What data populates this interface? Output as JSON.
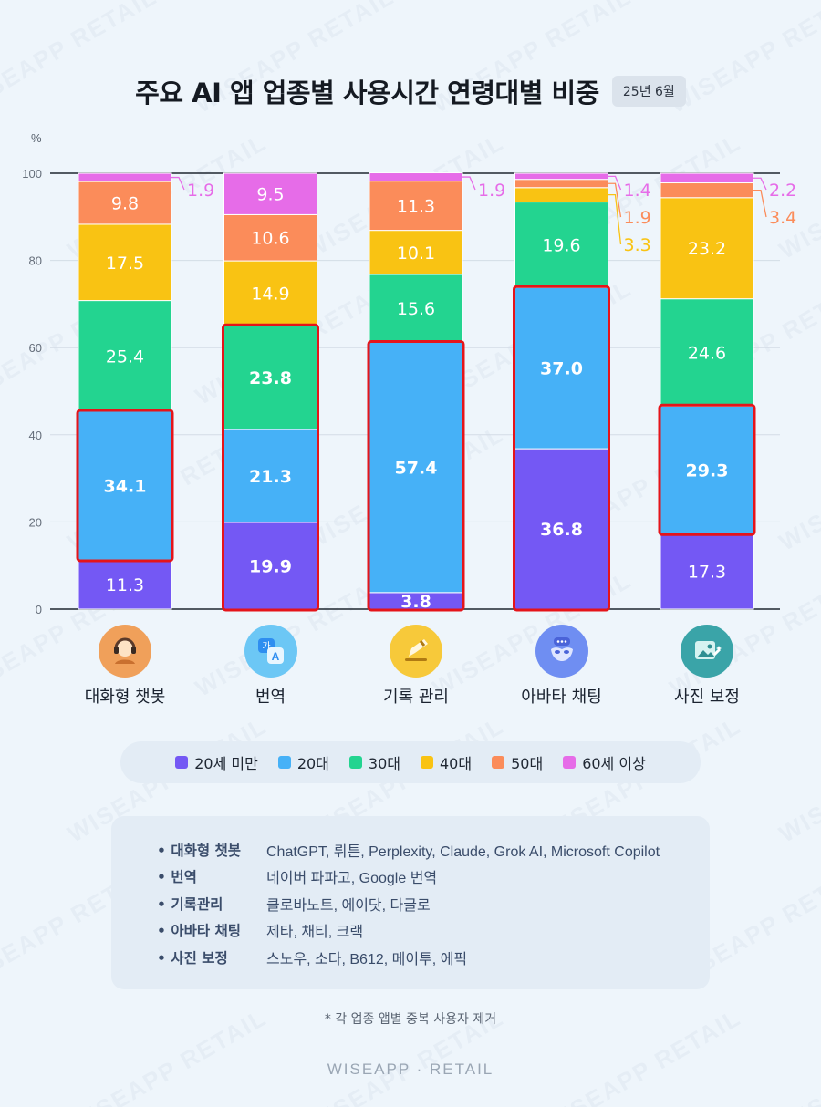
{
  "title": "주요 AI 앱 업종별 사용시간 연령대별 비중",
  "date_badge": "25년 6월",
  "unit": "%",
  "chart_data": {
    "type": "bar",
    "stacked": true,
    "categories": [
      "대화형 챗봇",
      "번역",
      "기록 관리",
      "아바타 채팅",
      "사진 보정"
    ],
    "ylim": [
      0,
      100
    ],
    "yticks": [
      0,
      20,
      40,
      60,
      80,
      100
    ],
    "ylabel": "%",
    "grid": true,
    "legend_position": "bottom",
    "series": [
      {
        "name": "20세 미만",
        "color": "#7458f4",
        "values": [
          11.3,
          19.9,
          3.8,
          36.8,
          17.3
        ]
      },
      {
        "name": "20대",
        "color": "#46b1f7",
        "values": [
          34.1,
          21.3,
          57.4,
          37.0,
          29.3
        ]
      },
      {
        "name": "30대",
        "color": "#23d490",
        "values": [
          25.4,
          23.8,
          15.6,
          19.6,
          24.6
        ]
      },
      {
        "name": "40대",
        "color": "#f9c313",
        "values": [
          17.5,
          14.9,
          10.1,
          3.3,
          23.2
        ]
      },
      {
        "name": "50대",
        "color": "#fb8c5a",
        "values": [
          9.8,
          10.6,
          11.3,
          1.9,
          3.4
        ]
      },
      {
        "name": "60세 이상",
        "color": "#e66ce8",
        "values": [
          1.9,
          9.5,
          1.9,
          1.4,
          2.2
        ]
      }
    ],
    "highlight": [
      {
        "category": 0,
        "series": [
          1
        ]
      },
      {
        "category": 1,
        "series": [
          0,
          1,
          2
        ]
      },
      {
        "category": 2,
        "series": [
          0,
          1
        ]
      },
      {
        "category": 3,
        "series": [
          0,
          1
        ]
      },
      {
        "category": 4,
        "series": [
          1
        ]
      }
    ],
    "highlight_color": "#e5141a"
  },
  "categories_icons": [
    "headset-avatar-icon",
    "translate-icon",
    "pencil-note-icon",
    "mask-chat-icon",
    "photo-edit-icon"
  ],
  "icon_colors": [
    "#f0a05a",
    "#6cc7f5",
    "#f7c93a",
    "#6f8ef2",
    "#3aa4a8"
  ],
  "notes": [
    {
      "key": "대화형 챗봇",
      "value": "ChatGPT, 뤼튼, Perplexity, Claude, Grok AI, Microsoft Copilot"
    },
    {
      "key": "번역",
      "value": "네이버 파파고, Google 번역"
    },
    {
      "key": "기록관리",
      "value": "클로바노트, 에이닷, 다글로"
    },
    {
      "key": "아바타 채팅",
      "value": "제타, 채티, 크랙"
    },
    {
      "key": "사진 보정",
      "value": "스노우, 소다, B612, 메이투, 에픽"
    }
  ],
  "footnote": "* 각 업종 앱별 중복 사용자 제거",
  "brand": "WISEAPP · RETAIL",
  "watermark_text": "WISEAPP RETAIL"
}
